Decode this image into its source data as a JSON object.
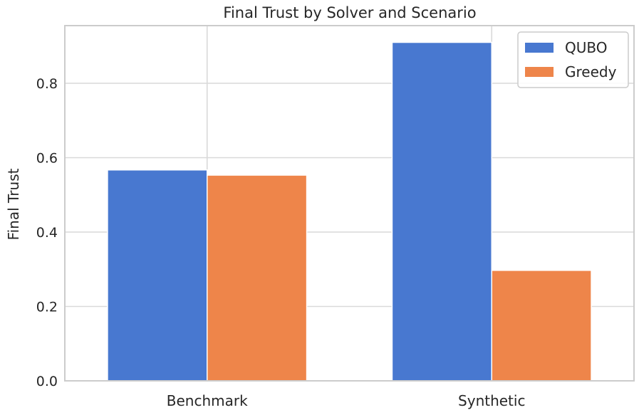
{
  "chart_data": {
    "type": "bar",
    "title": "Final Trust by Solver and Scenario",
    "xlabel": "",
    "ylabel": "Final Trust",
    "categories": [
      "Benchmark",
      "Synthetic"
    ],
    "series": [
      {
        "name": "QUBO",
        "values": [
          0.567,
          0.91
        ],
        "color": "#4878d0"
      },
      {
        "name": "Greedy",
        "values": [
          0.553,
          0.297
        ],
        "color": "#ee854a"
      }
    ],
    "yticks": [
      0.0,
      0.2,
      0.4,
      0.6,
      0.8
    ],
    "ytick_labels": [
      "0.0",
      "0.2",
      "0.4",
      "0.6",
      "0.8"
    ],
    "ylim": [
      0,
      0.955
    ],
    "grid": true,
    "legend": "top-right",
    "colors": {
      "grid": "#d9d9d9",
      "frame": "#cccccc",
      "text": "#262626"
    }
  }
}
